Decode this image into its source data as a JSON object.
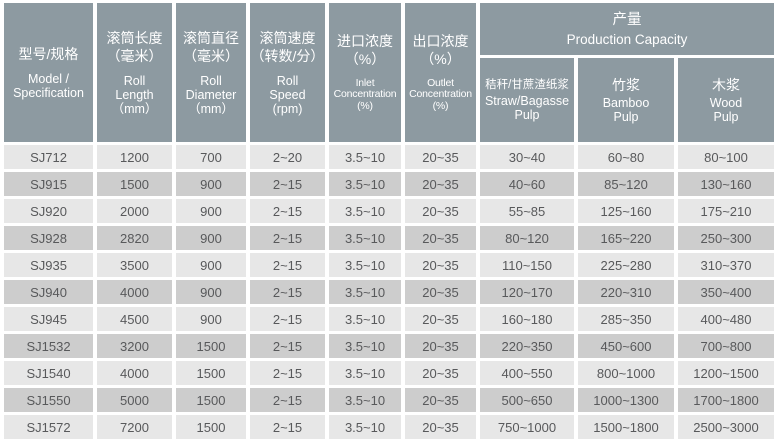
{
  "colors": {
    "header_bg": "#8d9aa1",
    "header_text": "#ffffff",
    "row_light": "#e7e7e7",
    "row_dark": "#cdcdcd",
    "data_text": "#58595b",
    "gap": "#ffffff"
  },
  "table": {
    "columns": [
      {
        "zh": "型号/规格",
        "en": "Model /\nSpecification"
      },
      {
        "zh": "滚筒长度\n（毫米）",
        "en": "Roll\nLength\n（mm）"
      },
      {
        "zh": "滚筒直径\n（毫米）",
        "en": "Roll\nDiameter\n（mm）"
      },
      {
        "zh": "滚筒速度\n（转数/分）",
        "en": "Roll\nSpeed\n(rpm)"
      },
      {
        "zh": "进口浓度\n（%）",
        "en": "Inlet\nConcentration\n(%)"
      },
      {
        "zh": "出口浓度\n（%）",
        "en": "Outlet\nConcentration\n(%)"
      }
    ],
    "capacity_group": {
      "zh": "产量",
      "en": "Production Capacity"
    },
    "capacity_columns": [
      {
        "zh": "秸秆/甘蔗渣纸浆",
        "en": "Straw/Bagasse\nPulp"
      },
      {
        "zh": "竹浆",
        "en": "Bamboo\nPulp"
      },
      {
        "zh": "木浆",
        "en": "Wood\nPulp"
      }
    ],
    "rows": [
      {
        "cells": [
          "SJ712",
          "1200",
          "700",
          "2~20",
          "3.5~10",
          "20~35",
          "30~40",
          "60~80",
          "80~100"
        ]
      },
      {
        "cells": [
          "SJ915",
          "1500",
          "900",
          "2~15",
          "3.5~10",
          "20~35",
          "40~60",
          "85~120",
          "130~160"
        ]
      },
      {
        "cells": [
          "SJ920",
          "2000",
          "900",
          "2~15",
          "3.5~10",
          "20~35",
          "55~85",
          "125~160",
          "175~210"
        ]
      },
      {
        "cells": [
          "SJ928",
          "2820",
          "900",
          "2~15",
          "3.5~10",
          "20~35",
          "80~120",
          "165~220",
          "250~300"
        ]
      },
      {
        "cells": [
          "SJ935",
          "3500",
          "900",
          "2~15",
          "3.5~10",
          "20~35",
          "110~150",
          "225~280",
          "310~370"
        ]
      },
      {
        "cells": [
          "SJ940",
          "4000",
          "900",
          "2~15",
          "3.5~10",
          "20~35",
          "120~170",
          "220~310",
          "350~400"
        ]
      },
      {
        "cells": [
          "SJ945",
          "4500",
          "900",
          "2~15",
          "3.5~10",
          "20~35",
          "160~180",
          "285~350",
          "400~480"
        ]
      },
      {
        "cells": [
          "SJ1532",
          "3200",
          "1500",
          "2~15",
          "3.5~10",
          "20~35",
          "220~350",
          "450~600",
          "700~800"
        ]
      },
      {
        "cells": [
          "SJ1540",
          "4000",
          "1500",
          "2~15",
          "3.5~10",
          "20~35",
          "400~550",
          "800~1000",
          "1200~1500"
        ]
      },
      {
        "cells": [
          "SJ1550",
          "5000",
          "1500",
          "2~15",
          "3.5~10",
          "20~35",
          "500~650",
          "1000~1300",
          "1700~1800"
        ]
      },
      {
        "cells": [
          "SJ1572",
          "7200",
          "1500",
          "2~15",
          "3.5~10",
          "20~35",
          "750~1000",
          "1500~1800",
          "2500~3000"
        ]
      }
    ]
  }
}
